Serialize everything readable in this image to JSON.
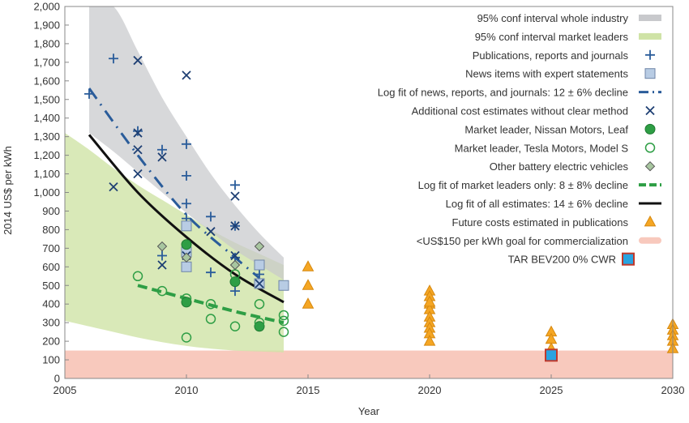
{
  "chart_data": {
    "type": "scatter",
    "xlabel": "Year",
    "ylabel": "2014 US$ per kWh",
    "xlim": [
      2005,
      2030
    ],
    "ylim": [
      0,
      2000
    ],
    "x_ticks": [
      2005,
      2010,
      2015,
      2020,
      2025,
      2030
    ],
    "y_ticks": [
      0,
      100,
      200,
      300,
      400,
      500,
      600,
      700,
      800,
      900,
      1000,
      1100,
      1200,
      1300,
      1400,
      1500,
      1600,
      1700,
      1800,
      1900,
      2000
    ],
    "y_tick_labels": [
      "0",
      "100",
      "200",
      "300",
      "400",
      "500",
      "600",
      "700",
      "800",
      "900",
      "1,000",
      "1,100",
      "1,200",
      "1,300",
      "1,400",
      "1,500",
      "1,600",
      "1,700",
      "1,800",
      "1,900",
      "2,000"
    ],
    "grid": false,
    "legend_position": "top-right",
    "colors": {
      "industry_band": "#c8c9cc",
      "leaders_band": "#cfe3a6",
      "blue": "#2a5c9a",
      "light_blue": "#b8cce4",
      "green": "#2e9e45",
      "diamond": "#7aa67a",
      "black": "#111111",
      "orange": "#f5a623",
      "pink": "#f8c9bd",
      "tar_fill": "#29a3e0",
      "tar_edge": "#c0392b"
    },
    "legend": [
      "95% conf interval whole industry",
      "95% conf interval market leaders",
      "Publications, reports and journals",
      "News items with expert statements",
      "Log fit of news, reports, and journals: 12 ± 6% decline",
      "Additional cost estimates without clear method",
      "Market leader, Nissan Motors, Leaf",
      "Market leader, Tesla Motors, Model S",
      "Other battery electric vehicles",
      "Log fit of market leaders only: 8 ± 8% decline",
      "Log fit of all estimates: 14 ± 6% decline",
      "Future costs estimated in publications",
      "<US$150 per kWh goal for commercialization",
      "TAR BEV200 0% CWR"
    ],
    "bands": {
      "industry": {
        "x": [
          2006,
          2007,
          2008,
          2009,
          2010,
          2011,
          2012,
          2013,
          2014
        ],
        "upper": [
          2000,
          2000,
          1760,
          1510,
          1300,
          1100,
          930,
          780,
          650
        ],
        "lower": [
          1320,
          1220,
          1110,
          1000,
          890,
          790,
          690,
          610,
          530
        ]
      },
      "leaders": {
        "x": [
          2005,
          2006,
          2007,
          2008,
          2009,
          2010,
          2011,
          2012,
          2013,
          2014
        ],
        "upper": [
          1320,
          1230,
          1130,
          1040,
          960,
          880,
          800,
          730,
          670,
          610
        ],
        "lower": [
          310,
          280,
          250,
          220,
          195,
          175,
          160,
          150,
          145,
          140
        ]
      }
    },
    "series": [
      {
        "name": "Publications, reports and journals",
        "marker": "plus",
        "x": [
          2006,
          2007,
          2008,
          2009,
          2009,
          2010,
          2010,
          2010,
          2010,
          2010,
          2011,
          2011,
          2012,
          2012,
          2012,
          2012,
          2013,
          2013
        ],
        "y": [
          1530,
          1720,
          1330,
          1230,
          660,
          1260,
          1090,
          940,
          860,
          700,
          870,
          570,
          1040,
          820,
          650,
          470,
          560,
          510
        ]
      },
      {
        "name": "News items with expert statements",
        "marker": "square",
        "x": [
          2010,
          2010,
          2010,
          2013,
          2013,
          2014
        ],
        "y": [
          820,
          680,
          600,
          610,
          510,
          500
        ]
      },
      {
        "name": "Additional cost estimates without clear method",
        "marker": "x",
        "x": [
          2007,
          2008,
          2008,
          2008,
          2008,
          2009,
          2009,
          2010,
          2010,
          2011,
          2012,
          2012,
          2012,
          2013
        ],
        "y": [
          1030,
          1710,
          1320,
          1230,
          1100,
          1190,
          610,
          1630,
          660,
          790,
          980,
          820,
          660,
          510
        ]
      },
      {
        "name": "Market leader, Nissan Motors, Leaf",
        "marker": "filled-circle",
        "x": [
          2010,
          2010,
          2012,
          2013
        ],
        "y": [
          720,
          410,
          520,
          280
        ]
      },
      {
        "name": "Market leader, Tesla Motors, Model S",
        "marker": "open-circle",
        "x": [
          2008,
          2009,
          2010,
          2010,
          2011,
          2011,
          2012,
          2012,
          2013,
          2013,
          2014,
          2014,
          2014
        ],
        "y": [
          550,
          470,
          430,
          220,
          400,
          320,
          560,
          280,
          400,
          300,
          340,
          310,
          250
        ]
      },
      {
        "name": "Other battery electric vehicles",
        "marker": "diamond",
        "x": [
          2009,
          2010,
          2012,
          2013
        ],
        "y": [
          710,
          650,
          610,
          710
        ]
      },
      {
        "name": "Future costs estimated in publications",
        "marker": "triangle",
        "x": [
          2015,
          2015,
          2015,
          2020,
          2020,
          2020,
          2020,
          2020,
          2020,
          2020,
          2020,
          2020,
          2020,
          2025,
          2025,
          2025,
          2030,
          2030,
          2030,
          2030,
          2030
        ],
        "y": [
          600,
          500,
          400,
          470,
          440,
          400,
          370,
          330,
          300,
          270,
          240,
          200,
          410,
          250,
          210,
          160,
          290,
          260,
          230,
          200,
          160
        ]
      },
      {
        "name": "TAR BEV200 0% CWR",
        "marker": "tar-square",
        "x": [
          2025
        ],
        "y": [
          125
        ]
      }
    ],
    "fits": [
      {
        "name": "Log fit of news, reports, and journals: 12 ± 6% decline",
        "style": "dash-dot",
        "x": [
          2006,
          2008,
          2010,
          2012,
          2013
        ],
        "y": [
          1560,
          1200,
          880,
          650,
          540
        ]
      },
      {
        "name": "Log fit of all estimates: 14 ± 6% decline",
        "style": "solid",
        "x": [
          2006,
          2008,
          2010,
          2012,
          2014
        ],
        "y": [
          1310,
          1000,
          760,
          560,
          410
        ]
      },
      {
        "name": "Log fit of market leaders only: 8 ± 8% decline",
        "style": "dashed",
        "x": [
          2008,
          2010,
          2012,
          2014
        ],
        "y": [
          500,
          430,
          360,
          300
        ]
      }
    ],
    "goal_band": {
      "name": "<US$150 per kWh goal for commercialization",
      "y_range": [
        0,
        150
      ]
    }
  }
}
